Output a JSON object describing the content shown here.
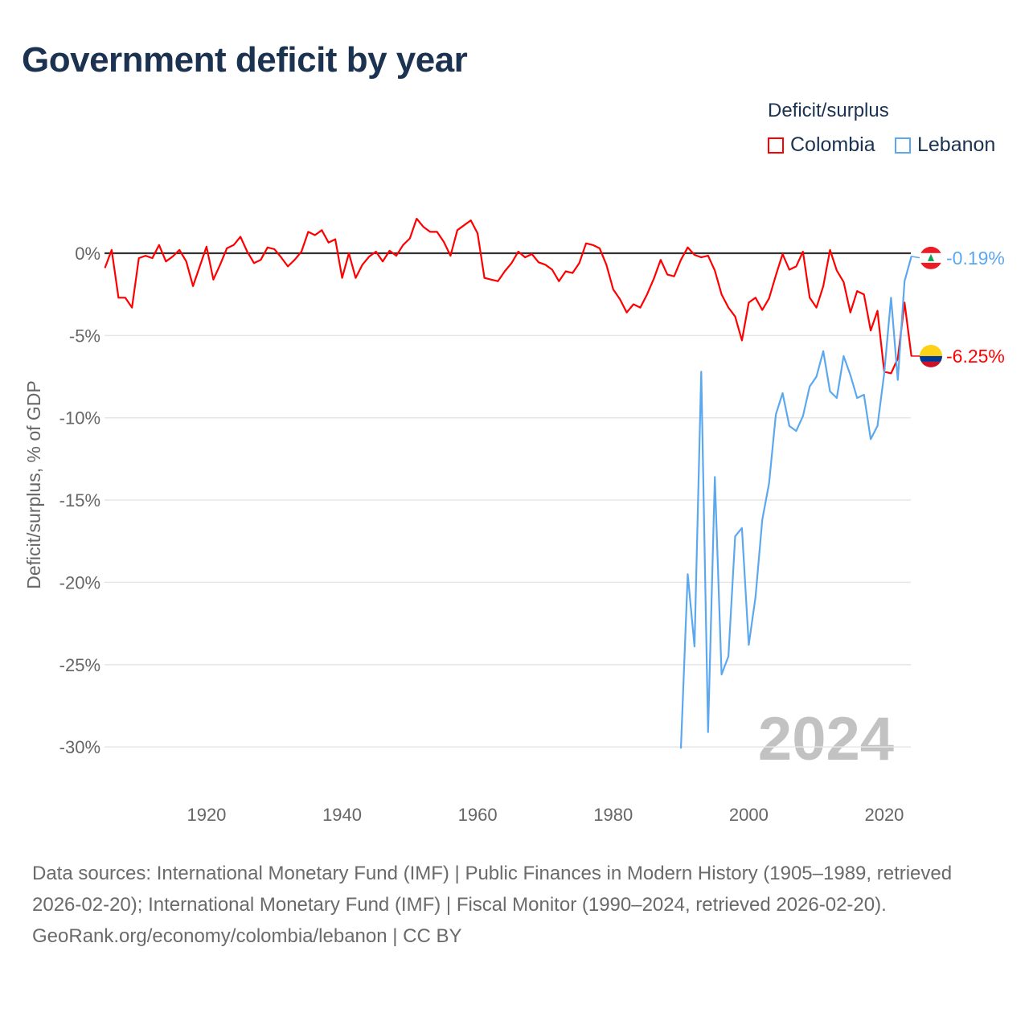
{
  "title": "Government deficit by year",
  "legend": {
    "title": "Deficit/surplus",
    "items": [
      {
        "name": "Colombia",
        "color": "#ff0000"
      },
      {
        "name": "Lebanon",
        "color": "#5ca8ef"
      }
    ]
  },
  "source": {
    "line1": "Data sources: International Monetary Fund (IMF) | Public Finances in Modern History (1905–1989, retrieved 2026-02-20); International Monetary Fund (IMF) | Fiscal Monitor (1990–2024, retrieved 2026-02-20).",
    "line2": "GeoRank.org/economy/colombia/lebanon | CC BY"
  },
  "chart_data": {
    "type": "line",
    "title": "Government deficit by year",
    "ylabel": "Deficit/surplus, % of GDP",
    "xlabel": "",
    "xlim": [
      1905,
      2024
    ],
    "ylim": [
      -33,
      3
    ],
    "yticks": [
      0,
      -5,
      -10,
      -15,
      -20,
      -25,
      -30
    ],
    "ytick_labels": [
      "0%",
      "-5%",
      "-10%",
      "-15%",
      "-20%",
      "-25%",
      "-30%"
    ],
    "xticks": [
      1920,
      1940,
      1960,
      1980,
      2000,
      2020
    ],
    "year_watermark": "2024",
    "legend_position": "top-right",
    "series": [
      {
        "name": "Colombia",
        "color": "#ff0000",
        "start_year": 1905,
        "end_label": "-6.25%",
        "values": [
          -0.9,
          0.2,
          -2.7,
          -2.7,
          -3.3,
          -0.3,
          -0.15,
          -0.3,
          0.5,
          -0.5,
          -0.2,
          0.2,
          -0.5,
          -2.0,
          -0.8,
          0.4,
          -1.6,
          -0.7,
          0.3,
          0.5,
          1.0,
          0.1,
          -0.6,
          -0.4,
          0.35,
          0.25,
          -0.25,
          -0.8,
          -0.4,
          0.1,
          1.3,
          1.1,
          1.4,
          0.65,
          0.85,
          -1.5,
          0,
          -1.5,
          -0.7,
          -0.2,
          0.1,
          -0.5,
          0.15,
          -0.15,
          0.5,
          0.9,
          2.1,
          1.6,
          1.3,
          1.3,
          0.7,
          -0.15,
          1.4,
          1.7,
          2.0,
          1.2,
          -1.5,
          -1.6,
          -1.7,
          -1.1,
          -0.6,
          0.1,
          -0.25,
          -0.05,
          -0.55,
          -0.7,
          -1.0,
          -1.7,
          -1.1,
          -1.2,
          -0.6,
          0.6,
          0.5,
          0.3,
          -0.7,
          -2.2,
          -2.8,
          -3.6,
          -3.1,
          -3.3,
          -2.5,
          -1.55,
          -0.4,
          -1.3,
          -1.4,
          -0.4,
          0.35,
          -0.1,
          -0.25,
          -0.15,
          -1.05,
          -2.5,
          -3.3,
          -3.85,
          -5.3,
          -3.0,
          -2.7,
          -3.45,
          -2.75,
          -1.35,
          -0.05,
          -1.0,
          -0.8,
          0.1,
          -2.7,
          -3.3,
          -2.0,
          0.2,
          -1.05,
          -1.75,
          -3.6,
          -2.3,
          -2.5,
          -4.7,
          -3.5,
          -7.2,
          -7.3,
          -6.4,
          -3.0,
          -6.25
        ]
      },
      {
        "name": "Lebanon",
        "color": "#5ca8ef",
        "start_year": 1990,
        "end_label": "-0.19%",
        "values": [
          -30.1,
          -19.5,
          -23.9,
          -7.2,
          -29.1,
          -13.6,
          -25.6,
          -24.5,
          -17.2,
          -16.7,
          -23.8,
          -20.9,
          -16.2,
          -14.0,
          -9.8,
          -8.5,
          -10.5,
          -10.8,
          -9.9,
          -8.1,
          -7.5,
          -5.95,
          -8.4,
          -8.8,
          -6.25,
          -7.4,
          -8.8,
          -8.6,
          -11.3,
          -10.5,
          -7.3,
          -2.7,
          -7.7,
          -1.7,
          -0.19
        ]
      }
    ]
  }
}
